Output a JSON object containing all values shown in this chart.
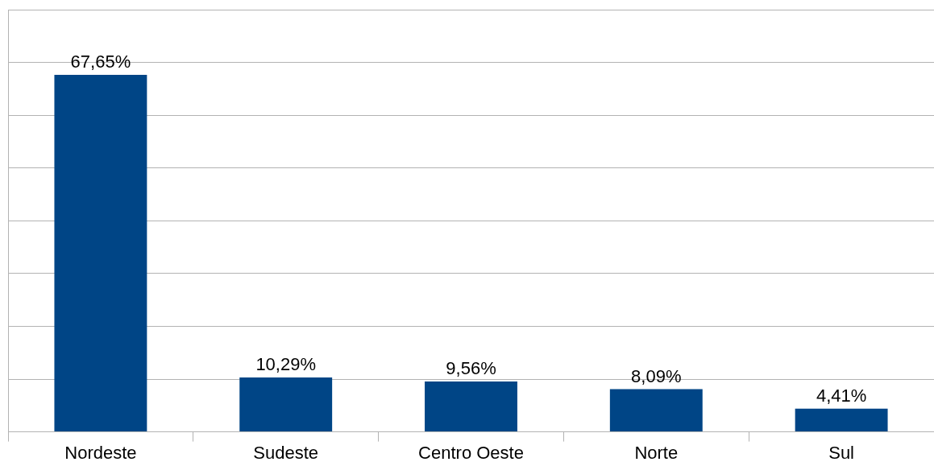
{
  "chart_data": {
    "type": "bar",
    "categories": [
      "Nordeste",
      "Sudeste",
      "Centro Oeste",
      "Norte",
      "Sul"
    ],
    "values": [
      67.65,
      10.29,
      9.56,
      8.09,
      4.41
    ],
    "value_labels": [
      "67,65%",
      "10,29%",
      "9,56%",
      "8,09%",
      "4,41%"
    ],
    "color": "#004586",
    "grid": "y",
    "tick_labels": "x"
  }
}
